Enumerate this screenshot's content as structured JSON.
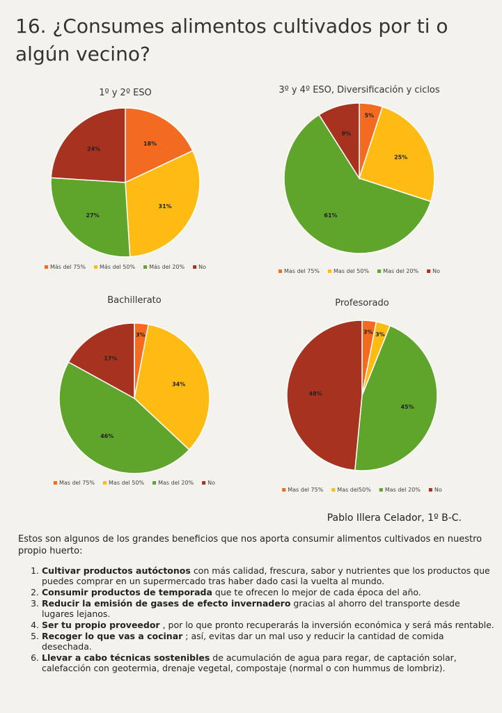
{
  "title": "16. ¿Consumes alimentos cultivados por ti o algún vecino?",
  "chart_data": [
    {
      "type": "pie",
      "title": "1º y 2º ESO",
      "categories": [
        "Más del 75%",
        "Más del 50%",
        "Más del 20%",
        "No"
      ],
      "values": [
        18,
        31,
        27,
        24
      ],
      "value_labels": [
        "18%",
        "31%",
        "27%",
        "24%"
      ],
      "colors": [
        "#f26b21",
        "#fdbb14",
        "#5fa52b",
        "#a83220"
      ]
    },
    {
      "type": "pie",
      "title": "3º y 4º ESO, Diversificación y ciclos",
      "categories": [
        "Mas del 75%",
        "Mas del 50%",
        "Mas del 20%",
        "No"
      ],
      "values": [
        5,
        25,
        61,
        9
      ],
      "value_labels": [
        "5%",
        "25%",
        "61%",
        "9%"
      ],
      "colors": [
        "#f26b21",
        "#fdbb14",
        "#5fa52b",
        "#a83220"
      ]
    },
    {
      "type": "pie",
      "title": "Bachillerato",
      "categories": [
        "Mas del 75%",
        "Mas del 50%",
        "Mas del 20%",
        "No"
      ],
      "values": [
        3,
        34,
        46,
        17
      ],
      "value_labels": [
        "3%",
        "34%",
        "46%",
        "17%"
      ],
      "colors": [
        "#f26b21",
        "#fdbb14",
        "#5fa52b",
        "#a83220"
      ]
    },
    {
      "type": "pie",
      "title": "Profesorado",
      "categories": [
        "Mas del 75%",
        "Mas del50%",
        "Mas del 20%",
        "No"
      ],
      "values": [
        3,
        3,
        45,
        48
      ],
      "value_labels": [
        "3%",
        "3%",
        "45%",
        "48%"
      ],
      "colors": [
        "#f26b21",
        "#fdbb14",
        "#5fa52b",
        "#a83220"
      ]
    }
  ],
  "author": "Pablo Illera Celador, 1º B-C.",
  "intro": "Estos son algunos de los grandes beneficios que nos aporta consumir alimentos cultivados en nuestro propio huerto:",
  "benefits": [
    {
      "bold": "Cultivar productos autóctonos",
      "text": "con más calidad, frescura, sabor y nutrientes que los productos que puedes comprar en un supermercado tras haber dado casi la vuelta al mundo."
    },
    {
      "bold": "Consumir productos de temporada",
      "text": "que te ofrecen lo mejor de cada época del año."
    },
    {
      "bold": "Reducir la emisión de gases de efecto invernadero",
      "text": "gracias al ahorro del transporte desde lugares lejanos."
    },
    {
      "bold": "Ser tu propio proveedor",
      "text": ", por lo que pronto recuperarás la inversión económica y será más rentable."
    },
    {
      "bold": "Recoger lo que vas a cocinar",
      "text": "; así, evitas dar un mal uso y reducir la cantidad de comida desechada."
    },
    {
      "bold": "Llevar a cabo técnicas sostenibles",
      "text": "de acumulación de agua para regar, de captación solar, calefacción con geotermia, drenaje vegetal, compostaje (normal o con hummus de lombriz)."
    }
  ]
}
